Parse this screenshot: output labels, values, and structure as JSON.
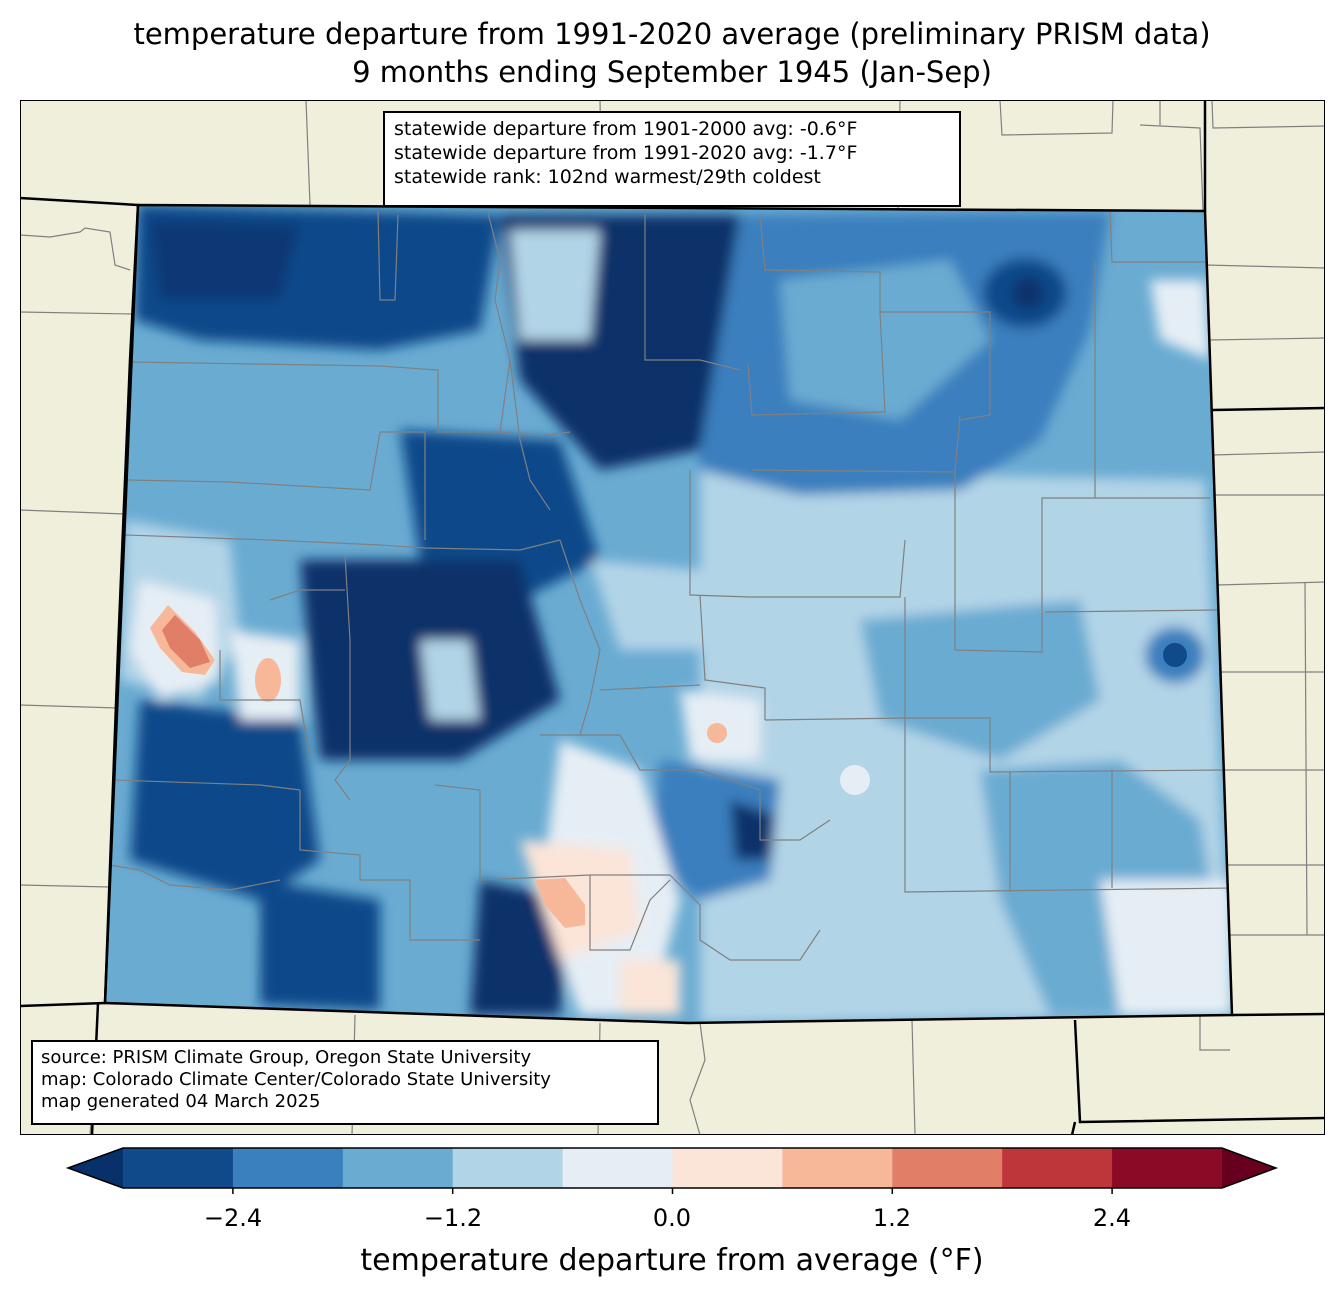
{
  "title": {
    "line1": "temperature departure from 1991-2020 average (preliminary PRISM data)",
    "line2": "9 months ending September 1945 (Jan-Sep)"
  },
  "stats": {
    "line1": "statewide departure from 1901-2000 avg: -0.6°F",
    "line2": "statewide departure from 1991-2020 avg: -1.7°F",
    "line3": "statewide rank: 102nd warmest/29th coldest"
  },
  "source": {
    "line1": "source: PRISM Climate Group, Oregon State University",
    "line2": "map: Colorado Climate Center/Colorado State University",
    "line3": "map generated 04 March 2025"
  },
  "colorbar": {
    "label": "temperature departure from average (°F)",
    "ticks": [
      "−2.4",
      "−1.2",
      "0.0",
      "1.2",
      "2.4"
    ],
    "bins": [
      -3.0,
      -2.4,
      -1.8,
      -1.2,
      -0.6,
      0.0,
      0.6,
      1.2,
      1.8,
      2.4,
      3.0
    ],
    "colors": [
      "#114a8a",
      "#3a7fbe",
      "#6aabd2",
      "#b2d4e7",
      "#e6eef5",
      "#fbe4d8",
      "#f7b799",
      "#e07e67",
      "#bf363a",
      "#8b0a26"
    ],
    "extend_low": "#08306b",
    "extend_high": "#67001f"
  },
  "map_colors": {
    "land": "#efefdc",
    "state_border": "#000000",
    "county_line": "#808080"
  }
}
